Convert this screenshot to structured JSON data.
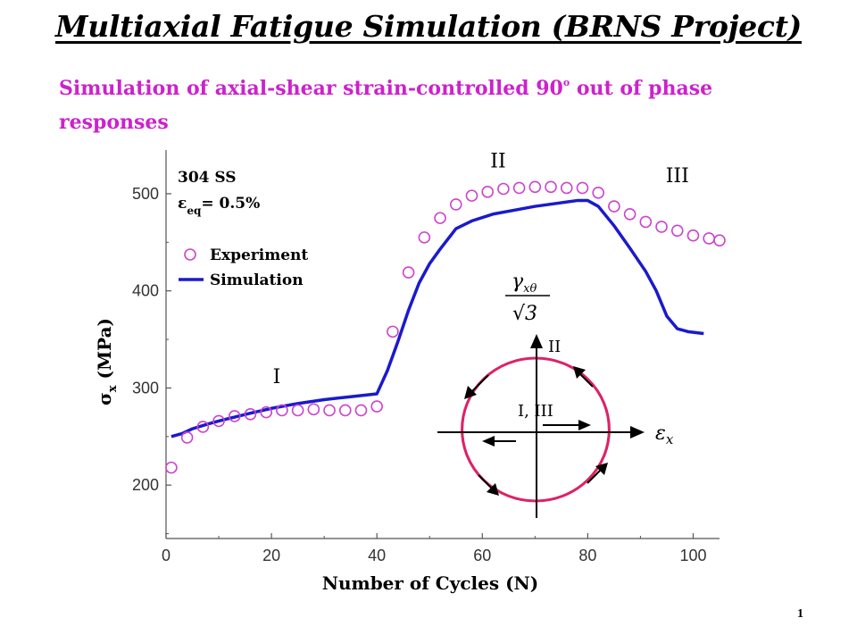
{
  "slide": {
    "title": "Multiaxial Fatigue Simulation (BRNS Project)",
    "subtitle_main": "Simulation of axial-shear strain-controlled 90",
    "subtitle_sup": "o",
    "subtitle_rest": " out of phase responses",
    "page_number": "1"
  },
  "chart_data": {
    "type": "line+scatter",
    "xlabel": "Number of Cycles (N)",
    "ylabel_main": "σ",
    "ylabel_sub": "x",
    "ylabel_units": " (MPa)",
    "xlim": [
      0,
      105
    ],
    "ylim": [
      145,
      545
    ],
    "xticks": [
      0,
      20,
      40,
      60,
      80,
      100
    ],
    "yticks": [
      200,
      300,
      400,
      500
    ],
    "annotations": {
      "material": "304 SS",
      "strain_prefix": "ε",
      "strain_sub": "eq",
      "strain_value": "= 0.5%",
      "regions": [
        {
          "label": "I",
          "x": 21,
          "y": 305
        },
        {
          "label": "II",
          "x": 63,
          "y": 527
        },
        {
          "label": "III",
          "x": 97,
          "y": 512
        }
      ]
    },
    "legend": {
      "position": "upper-left",
      "entries": [
        "Experiment",
        "Simulation"
      ]
    },
    "colors": {
      "experiment": "#cc44cc",
      "simulation": "#1a1acc"
    },
    "series": [
      {
        "name": "Experiment",
        "style": "open-circle",
        "x": [
          1,
          4,
          7,
          10,
          13,
          16,
          19,
          22,
          25,
          28,
          31,
          34,
          37,
          40,
          43,
          46,
          49,
          52,
          55,
          58,
          61,
          64,
          67,
          70,
          73,
          76,
          79,
          82,
          85,
          88,
          91,
          94,
          97,
          100,
          103,
          105
        ],
        "y": [
          218,
          249,
          260,
          266,
          271,
          273,
          275,
          277,
          277,
          278,
          277,
          277,
          277,
          281,
          358,
          419,
          455,
          475,
          489,
          498,
          502,
          505,
          506,
          507,
          507,
          506,
          506,
          501,
          487,
          479,
          471,
          466,
          462,
          457,
          454,
          452
        ]
      },
      {
        "name": "Simulation",
        "style": "line",
        "x": [
          1,
          3,
          5,
          8,
          10,
          13,
          16,
          20,
          25,
          30,
          35,
          40,
          42,
          44,
          46,
          48,
          50,
          52,
          55,
          58,
          62,
          66,
          70,
          74,
          78,
          80,
          82,
          85,
          88,
          91,
          93,
          95,
          97,
          99,
          102
        ],
        "y": [
          250,
          253,
          258,
          263,
          266,
          270,
          274,
          279,
          284,
          288,
          291,
          294,
          318,
          348,
          380,
          408,
          428,
          443,
          464,
          472,
          479,
          483,
          487,
          490,
          493,
          493,
          487,
          467,
          444,
          420,
          400,
          374,
          361,
          358,
          356
        ]
      }
    ]
  },
  "inset": {
    "y_numerator": "γ",
    "y_numerator_sub": "xθ",
    "y_denominator": "√3",
    "x_label": "ε",
    "x_label_sub": "x",
    "label_top": "II",
    "label_center": "I, III",
    "colors": {
      "circle": "#dd2266",
      "axes": "#000000"
    }
  }
}
